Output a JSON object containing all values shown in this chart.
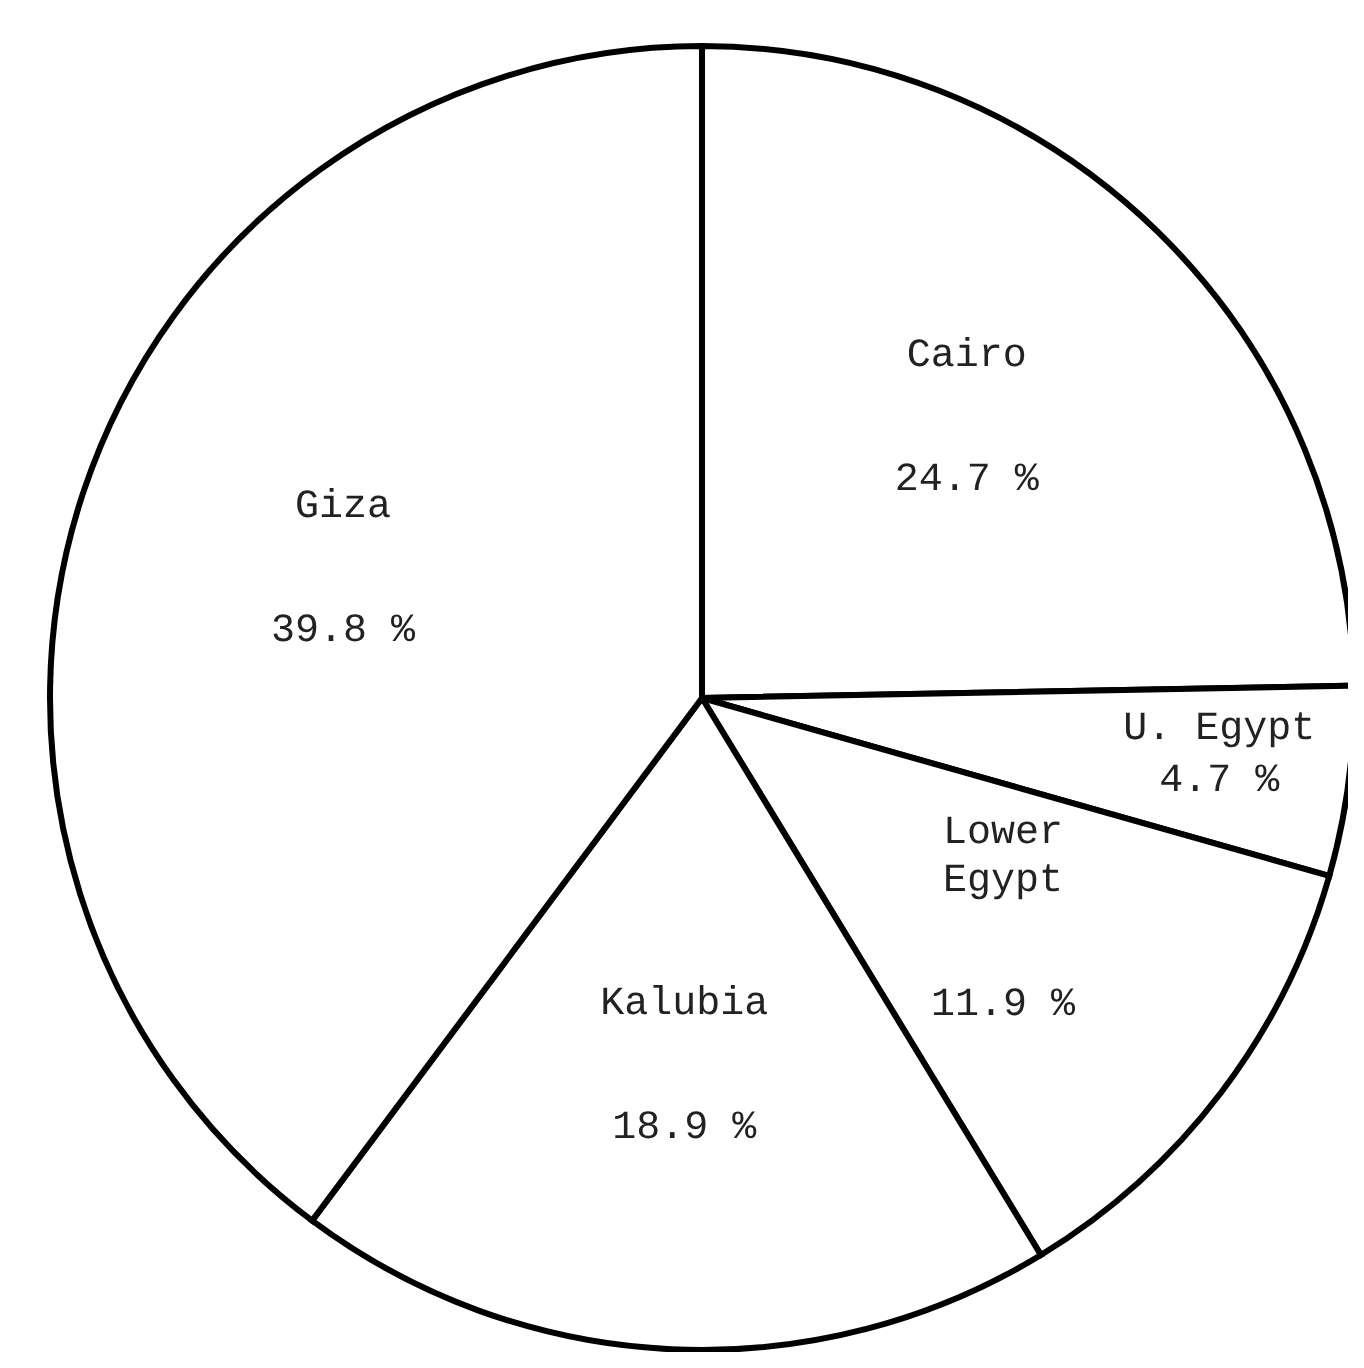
{
  "chart_data": {
    "type": "pie",
    "categories": [
      "Cairo",
      "U. Egypt",
      "Lower Egypt",
      "Kalubia",
      "Giza"
    ],
    "values": [
      24.7,
      4.7,
      11.9,
      18.9,
      39.8
    ],
    "value_labels": [
      "24.7 %",
      "4.7 %",
      "11.9 %",
      "18.9 %",
      "39.8 %"
    ],
    "colors": [
      "#ffffff",
      "#ffffff",
      "#ffffff",
      "#ffffff",
      "#ffffff"
    ],
    "legend": false
  }
}
